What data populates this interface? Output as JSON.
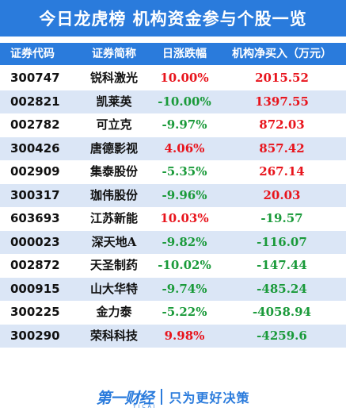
{
  "title": "今日龙虎榜  机构资金参与个股一览",
  "colors": {
    "primary": "#2a7bdc",
    "row_alt": "#dbe6f6",
    "up": "#e8141c",
    "down": "#1a9a3a"
  },
  "headers": {
    "code": "证券代码",
    "name": "证券简称",
    "change": "日涨跌幅",
    "net": "机构净买入（万元）"
  },
  "rows": [
    {
      "code": "300747",
      "name": "锐科激光",
      "change": "10.00%",
      "net": "2015.52",
      "change_dir": "up",
      "net_dir": "up"
    },
    {
      "code": "002821",
      "name": "凯莱英",
      "change": "-10.00%",
      "net": "1397.55",
      "change_dir": "down",
      "net_dir": "up"
    },
    {
      "code": "002782",
      "name": "可立克",
      "change": "-9.97%",
      "net": "872.03",
      "change_dir": "down",
      "net_dir": "up"
    },
    {
      "code": "300426",
      "name": "唐德影视",
      "change": "4.06%",
      "net": "857.42",
      "change_dir": "up",
      "net_dir": "up"
    },
    {
      "code": "002909",
      "name": "集泰股份",
      "change": "-5.35%",
      "net": "267.14",
      "change_dir": "down",
      "net_dir": "up"
    },
    {
      "code": "300317",
      "name": "珈伟股份",
      "change": "-9.96%",
      "net": "20.03",
      "change_dir": "down",
      "net_dir": "up"
    },
    {
      "code": "603693",
      "name": "江苏新能",
      "change": "10.03%",
      "net": "-19.57",
      "change_dir": "up",
      "net_dir": "down"
    },
    {
      "code": "000023",
      "name": "深天地A",
      "change": "-9.82%",
      "net": "-116.07",
      "change_dir": "down",
      "net_dir": "down"
    },
    {
      "code": "002872",
      "name": "天圣制药",
      "change": "-10.02%",
      "net": "-147.44",
      "change_dir": "down",
      "net_dir": "down"
    },
    {
      "code": "000915",
      "name": "山大华特",
      "change": "-9.74%",
      "net": "-485.24",
      "change_dir": "down",
      "net_dir": "down"
    },
    {
      "code": "300225",
      "name": "金力泰",
      "change": "-5.22%",
      "net": "-4058.94",
      "change_dir": "down",
      "net_dir": "down"
    },
    {
      "code": "300290",
      "name": "荣科科技",
      "change": "9.98%",
      "net": "-4259.6",
      "change_dir": "up",
      "net_dir": "down"
    }
  ],
  "footer": {
    "logo_text": "第一财经",
    "logo_sub": "YICAI",
    "slogan": "只为更好决策"
  }
}
